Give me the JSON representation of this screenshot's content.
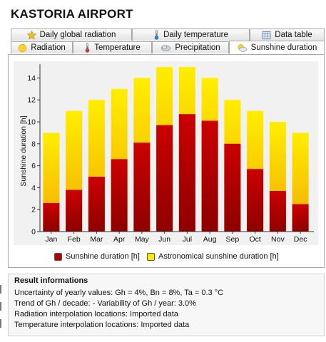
{
  "title": "KASTORIA AIRPORT",
  "tabs_top": [
    {
      "label": "Daily global radiation",
      "icon": "star-icon"
    },
    {
      "label": "Daily temperature",
      "icon": "thermometer-icon"
    },
    {
      "label": "Data table",
      "icon": "table-icon"
    }
  ],
  "tabs_bottom": [
    {
      "label": "Radiation",
      "icon": "sun-icon"
    },
    {
      "label": "Temperature",
      "icon": "thermometer-icon"
    },
    {
      "label": "Precipitation",
      "icon": "cloud-icon"
    },
    {
      "label": "Sunshine duration",
      "icon": "sun-cloud-icon",
      "active": true
    }
  ],
  "colors": {
    "sunshine": "#c00000",
    "astronomical": "#ffee00",
    "plot_bg": "#f1f1f1"
  },
  "chart_data": {
    "type": "bar",
    "stacked_overlay": true,
    "categories": [
      "Jan",
      "Feb",
      "Mar",
      "Apr",
      "May",
      "Jun",
      "Jul",
      "Aug",
      "Sep",
      "Oct",
      "Nov",
      "Dec"
    ],
    "series": [
      {
        "name": "Sunshine duration [h]",
        "values": [
          2.6,
          3.8,
          5.0,
          6.6,
          8.1,
          9.7,
          10.7,
          10.1,
          8.0,
          5.7,
          3.7,
          2.5
        ]
      },
      {
        "name": "Astronomical sunshine duration [h]",
        "values": [
          9,
          11,
          12,
          13,
          14,
          15,
          15,
          14,
          12,
          11,
          10,
          9
        ]
      }
    ],
    "ylabel": "Sunshine duration [h]",
    "xlabel": "",
    "ylim": [
      0,
      15
    ],
    "yticks": [
      0,
      2,
      4,
      6,
      8,
      10,
      12,
      14
    ],
    "grid": false,
    "legend_position": "bottom"
  },
  "info": {
    "title": "Result informations",
    "lines": [
      "Uncertainty of yearly values: Gh = 4%, Bn = 8%, Ta = 0.3 °C",
      "Trend of Gh / decade: -   Variability of Gh / year: 3.0%",
      "Radiation interpolation locations: Imported data",
      "Temperature interpolation locations: Imported data"
    ]
  }
}
